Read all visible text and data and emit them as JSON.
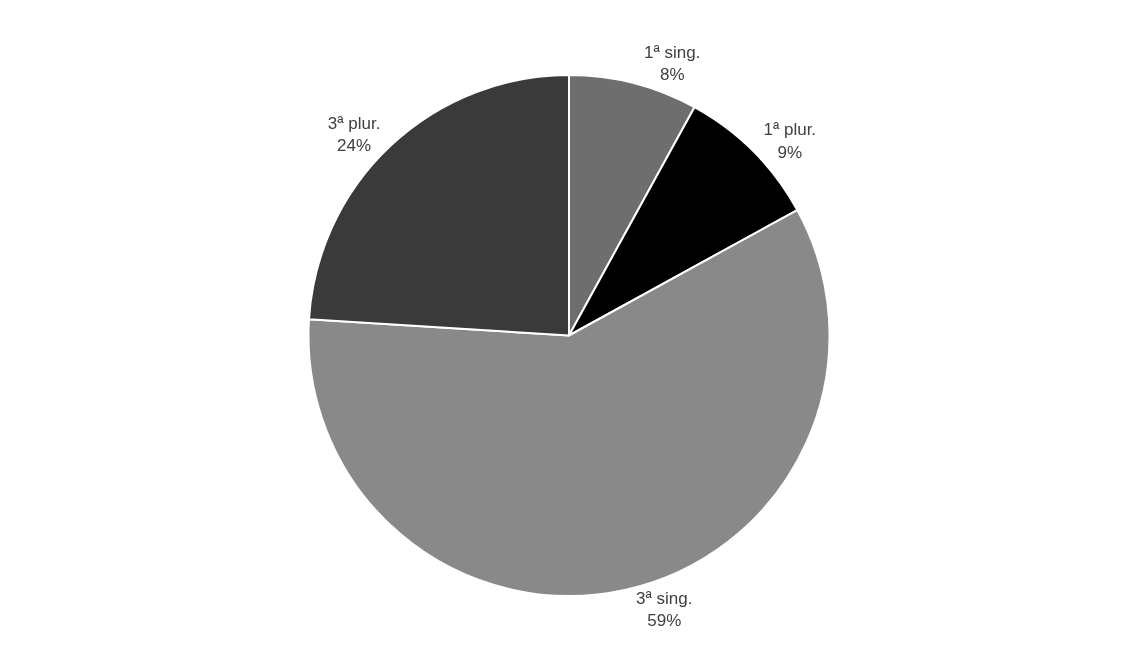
{
  "chart_data": {
    "type": "pie",
    "categories": [
      "1ª sing.",
      "1ª plur.",
      "3ª sing.",
      "3ª plur."
    ],
    "values": [
      8,
      9,
      59,
      24
    ],
    "colors": [
      "#6e6e6e",
      "#000000",
      "#898989",
      "#3a3a3a"
    ],
    "value_labels": [
      "8%",
      "9%",
      "59%",
      "24%"
    ],
    "legend": false
  }
}
